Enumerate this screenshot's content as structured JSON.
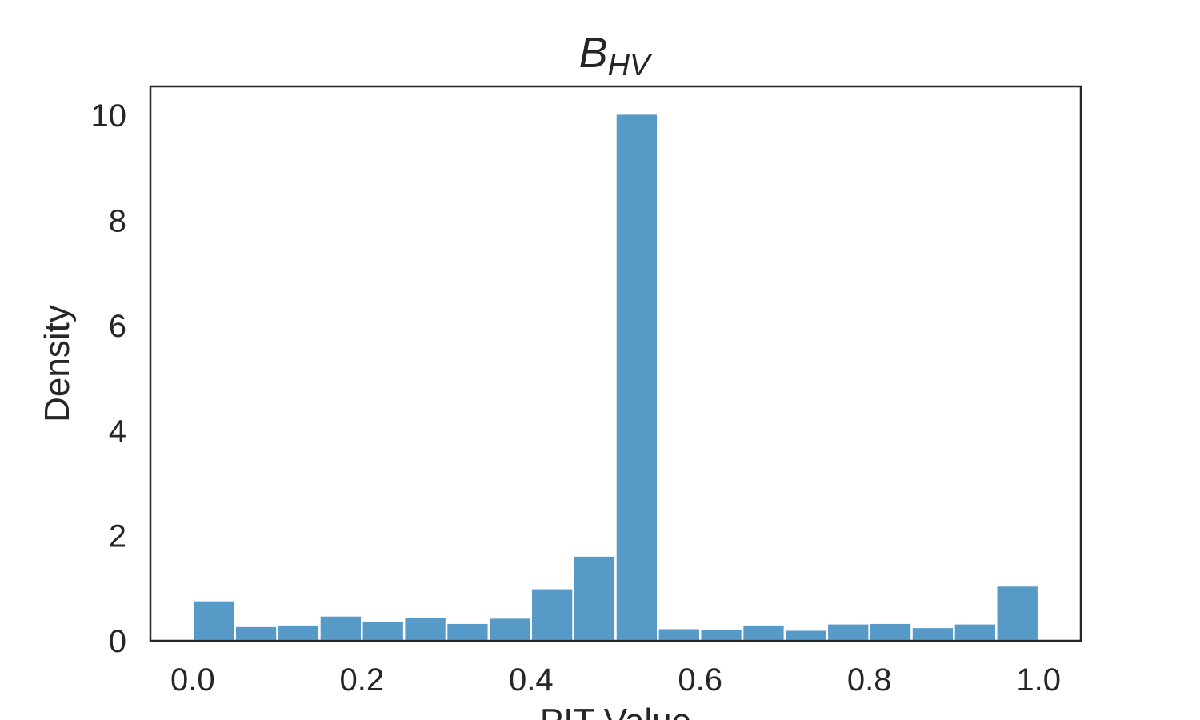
{
  "chart_data": {
    "type": "bar",
    "title": "B",
    "title_subscript": "HV",
    "xlabel": "PIT Value",
    "ylabel": "Density",
    "xlim": [
      -0.05,
      1.05
    ],
    "ylim": [
      0,
      10.55
    ],
    "grid": false,
    "xticks": [
      0.0,
      0.2,
      0.4,
      0.6,
      0.8,
      1.0
    ],
    "xtick_labels": [
      "0.0",
      "0.2",
      "0.4",
      "0.6",
      "0.8",
      "1.0"
    ],
    "yticks": [
      0,
      2,
      4,
      6,
      8,
      10
    ],
    "ytick_labels": [
      "0",
      "2",
      "4",
      "6",
      "8",
      "10"
    ],
    "bin_edges": [
      0.0,
      0.05,
      0.1,
      0.15,
      0.2,
      0.25,
      0.3,
      0.35,
      0.4,
      0.45,
      0.5,
      0.55,
      0.6,
      0.65,
      0.7,
      0.75,
      0.8,
      0.85,
      0.9,
      0.95,
      1.0
    ],
    "values": [
      0.77,
      0.28,
      0.31,
      0.48,
      0.38,
      0.46,
      0.34,
      0.44,
      1.0,
      1.62,
      10.03,
      0.24,
      0.23,
      0.31,
      0.21,
      0.33,
      0.34,
      0.26,
      0.33,
      1.05
    ],
    "bar_color": "#5799c7"
  }
}
